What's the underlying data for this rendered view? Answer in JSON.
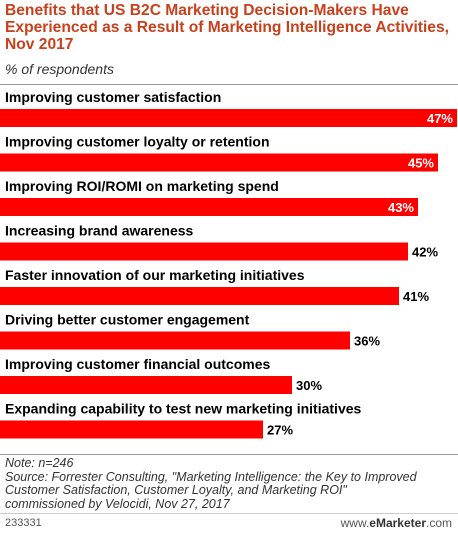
{
  "header": {
    "title": "Benefits that US B2C Marketing Decision-Makers Have Experienced as a Result of Marketing Intelligence Activities, Nov 2017",
    "subtitle": "% of respondents"
  },
  "chart_data": {
    "type": "bar",
    "orientation": "horizontal",
    "categories": [
      "Improving customer satisfaction",
      "Improving customer loyalty or retention",
      "Improving ROI/ROMI on marketing spend",
      "Increasing brand awareness",
      "Faster innovation of our marketing initiatives",
      "Driving better customer engagement",
      "Improving customer financial outcomes",
      "Expanding capability to test new marketing initiatives"
    ],
    "values": [
      47,
      45,
      43,
      42,
      41,
      36,
      30,
      27
    ],
    "value_labels": [
      "47%",
      "45%",
      "43%",
      "42%",
      "41%",
      "36%",
      "30%",
      "27%"
    ],
    "xlim": [
      0,
      47
    ],
    "bar_color": "#ff0000",
    "grid": false,
    "legend": "none"
  },
  "notes": {
    "note": "Note: n=246",
    "source_line1": "Source: Forrester Consulting, \"Marketing Intelligence: the Key to Improved",
    "source_line2": "Customer Satisfaction, Customer Loyalty, and Marketing ROI\"",
    "source_line3": "commissioned by Velocidi, Nov 27, 2017"
  },
  "footer": {
    "chart_id": "233331",
    "brand_prefix": "www.",
    "brand_name": "eMarketer",
    "brand_suffix": ".com"
  }
}
